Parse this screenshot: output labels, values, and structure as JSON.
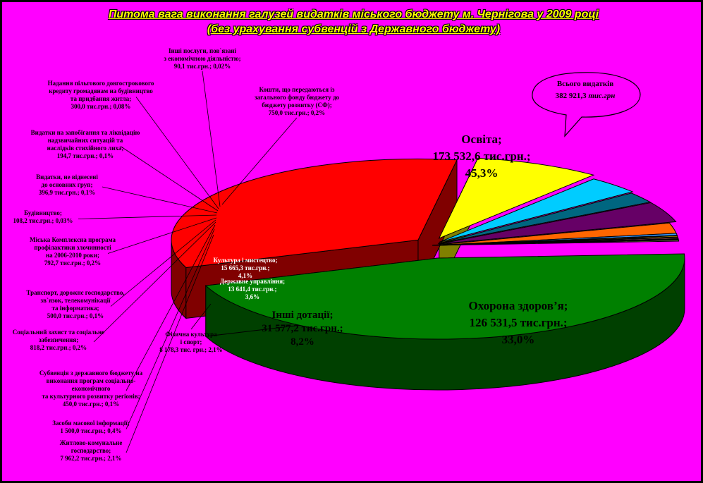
{
  "title_line1": "Питома вага виконання галузей видатків міського бюджету м. Чернігова у 2009 році",
  "title_line2": "(без урахування субвенцій з Державного бюджету)",
  "total_label": "Всього видатків",
  "total_value": "382 921,3",
  "total_unit": "тис.грн",
  "colors": {
    "background": "#ff00ff",
    "education": "#008000",
    "health": "#ff0000",
    "other_grants": "#ffff00",
    "state_admin": "#00ccff",
    "culture": "#660066",
    "physical_culture": "#006680",
    "housing": "#ff6600",
    "transport": "#ff8080"
  },
  "chart_data": {
    "type": "pie",
    "title": "Питома вага виконання галузей видатків міського бюджету м. Чернігова у 2009 році",
    "subtitle": "(без урахування субвенцій з Державного бюджету)",
    "total": 382921.3,
    "slices": [
      {
        "name": "Освіта",
        "value": 173532.6,
        "percent": 45.3,
        "labels": [
          "Освіта;",
          "173 532,6 тис.грн.;",
          "45,3%"
        ]
      },
      {
        "name": "Охорона здоров'я",
        "value": 126531.5,
        "percent": 33.0,
        "labels": [
          "Охорона здоров’я;",
          "126 531,5 тис.грн.;",
          "33,0%"
        ]
      },
      {
        "name": "Інші дотації",
        "value": 31577.2,
        "percent": 8.2,
        "labels": [
          "Інші дотації;",
          "31 577,2 тис.грн.;",
          "8,2%"
        ]
      },
      {
        "name": "Державне управління",
        "value": 13641.4,
        "percent": 3.6,
        "labels": [
          "Державне управління;",
          "13 641,4 тис.грн.;",
          "3,6%"
        ]
      },
      {
        "name": "Фізична культура і спорт",
        "value": 8178.3,
        "percent": 2.1,
        "labels": [
          "Фізична культура",
          "і спорт;",
          "8 178,3 тис. грн.; 2,1%"
        ]
      },
      {
        "name": "Культура і мистецтво",
        "value": 15665.3,
        "percent": 4.1,
        "labels": [
          "Культура і мистецтво;",
          "15 665,3 тис.грн.;",
          "4,1%"
        ]
      },
      {
        "name": "Житлово-комунальне господарство",
        "value": 7962.2,
        "percent": 2.1,
        "labels": [
          "Житлово-комунальне",
          "господарство;",
          "7 962,2 тис.грн.; 2,1%"
        ]
      },
      {
        "name": "Засоби масової інформації",
        "value": 1500.0,
        "percent": 0.4,
        "labels": [
          "Засоби масової інформації;",
          "1 500,0 тис.грн.; 0,4%"
        ]
      },
      {
        "name": "Субвенція з державного бюджету на виконання програм соціально-економічного та культурного розвитку регіонів",
        "value": 450.0,
        "percent": 0.1,
        "labels": [
          "Субвенція з державного бюджету на",
          "виконання програм соціально-",
          "економічного",
          "та культурного розвитку регіонів;",
          "450,0 тис.грн.; 0,1%"
        ]
      },
      {
        "name": "Соціальний захист та соціальне забезпечення",
        "value": 818.2,
        "percent": 0.2,
        "labels": [
          "Соціальний захист та соціальне",
          "забезпечення;",
          "818,2 тис.грн.; 0,2%"
        ]
      },
      {
        "name": "Транспорт, дорожнє господарство, зв'язок, телекомунікації та інформатика",
        "value": 500.0,
        "percent": 0.1,
        "labels": [
          "Транспорт, дорожнє господарство,",
          "зв`язок, телекомунікації",
          "та інформатика;",
          "500,0 тис.грн.; 0,1%"
        ]
      },
      {
        "name": "Міська Комплексна програма профілактики злочинності на 2006-2010 роки",
        "value": 792.7,
        "percent": 0.2,
        "labels": [
          "Міська Комплексна програма",
          "профілактики злочинності",
          "на 2006-2010 роки;",
          "792,7 тис.грн.; 0,2%"
        ]
      },
      {
        "name": "Будівництво",
        "value": 108.2,
        "percent": 0.03,
        "labels": [
          "Будівництво;",
          "108,2 тис.грн.; 0,03%"
        ]
      },
      {
        "name": "Видатки, не віднесені до основних груп",
        "value": 396.9,
        "percent": 0.1,
        "labels": [
          "Видатки, не віднесені",
          "до основних груп;",
          "396,9 тис.грн.; 0,1%"
        ]
      },
      {
        "name": "Видатки на запобігання та ліквідацію надзвичайних ситуацій та наслідків стихійного лиха",
        "value": 194.7,
        "percent": 0.1,
        "labels": [
          "Видатки на запобігання та ліквідацію",
          "надзвичайних ситуацій та",
          "наслідків стихійного лиха;",
          "194,7 тис.грн.; 0,1%"
        ]
      },
      {
        "name": "Надання пільгового довгострокового кредиту громадянам на будівництво та придбання житла",
        "value": 300.0,
        "percent": 0.08,
        "labels": [
          "Надання пільгового довгострокового",
          "кредиту громадянам на будівництво",
          "та придбання житла;",
          "300,0 тис.грн.; 0,08%"
        ]
      },
      {
        "name": "Інші послуги, пов'язані з економічною діяльністю",
        "value": 90.1,
        "percent": 0.02,
        "labels": [
          "Інші послуги, пов`язані",
          "з економічною діяльністю;",
          "90,1 тис.грн.; 0,02%"
        ]
      },
      {
        "name": "Кошти, що передаються із загального фонду бюджету до бюджету розвитку (СФ)",
        "value": 750.0,
        "percent": 0.2,
        "labels": [
          "Кошти, що передаються із",
          "загального фонду бюджету до",
          "бюджету розвитку (СФ);",
          "750,0 тис.грн.; 0,2%"
        ]
      }
    ]
  }
}
